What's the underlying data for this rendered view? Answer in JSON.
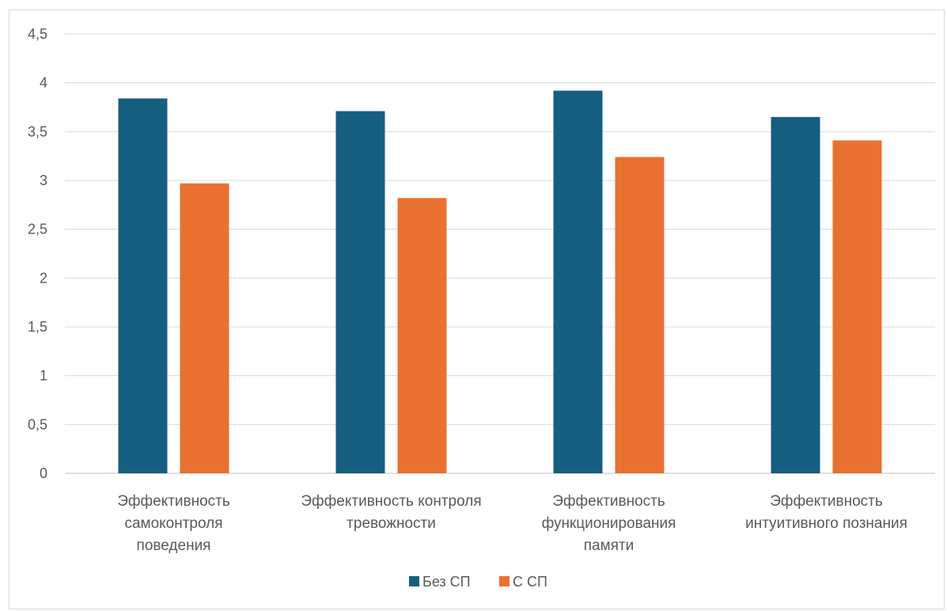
{
  "chart_data": {
    "type": "bar",
    "categories": [
      [
        "Эффективность",
        "самоконтроля",
        "поведения"
      ],
      [
        "Эффективность контроля",
        "тревожности"
      ],
      [
        "Эффективность",
        "функционирования",
        "памяти"
      ],
      [
        "Эффективность",
        "интуитивного познания"
      ]
    ],
    "series": [
      {
        "name": "Без СП",
        "color": "#165E80",
        "values": [
          3.84,
          3.71,
          3.92,
          3.65
        ]
      },
      {
        "name": "С СП",
        "color": "#E97132",
        "values": [
          2.97,
          2.82,
          3.24,
          3.41
        ]
      }
    ],
    "ylim": [
      0,
      4.5
    ],
    "yticks": [
      "0",
      "0,5",
      "1",
      "1,5",
      "2",
      "2,5",
      "3",
      "3,5",
      "4",
      "4,5"
    ],
    "grid": true,
    "legend_position": "bottom"
  }
}
